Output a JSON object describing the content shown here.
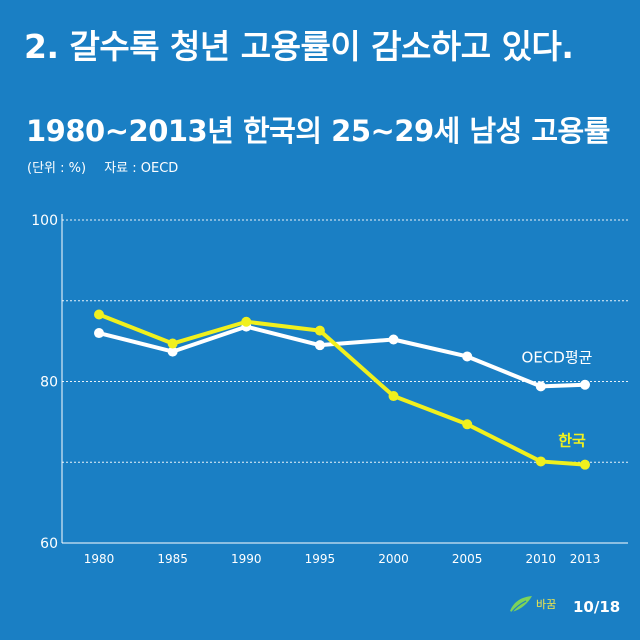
{
  "headline": "2. 갈수록 청년 고용률이 감소하고 있다.",
  "subtitle": "1980~2013년 한국의 25~29세 남성 고용률",
  "unit_note": "(단위 : %)",
  "source_note": "자료 : OECD",
  "logo_text": "바꿈",
  "page_number": "10/18",
  "colors": {
    "background": "#1a7fc4",
    "korea": "#f0f01e",
    "oecd": "#ffffff"
  },
  "chart_data": {
    "type": "line",
    "title": "1980~2013년 한국의 25~29세 남성 고용률",
    "unit": "(단위 : %)",
    "x": [
      1980,
      1985,
      1990,
      1995,
      2000,
      2005,
      2010,
      2013
    ],
    "x_tick_labels": [
      "1980",
      "1985",
      "1990",
      "1995",
      "2000",
      "2005",
      "2010",
      "2013"
    ],
    "y_tick_labels": [
      "60",
      "80",
      "100"
    ],
    "ylim": [
      60,
      100
    ],
    "grid": true,
    "series": [
      {
        "name": "OECD평균",
        "color": "#ffffff",
        "values": [
          86.0,
          83.7,
          86.8,
          84.5,
          85.2,
          83.1,
          79.4,
          79.6
        ]
      },
      {
        "name": "한국",
        "color": "#f0f01e",
        "values": [
          88.3,
          84.7,
          87.4,
          86.3,
          78.2,
          74.7,
          70.1,
          69.7
        ]
      }
    ]
  }
}
